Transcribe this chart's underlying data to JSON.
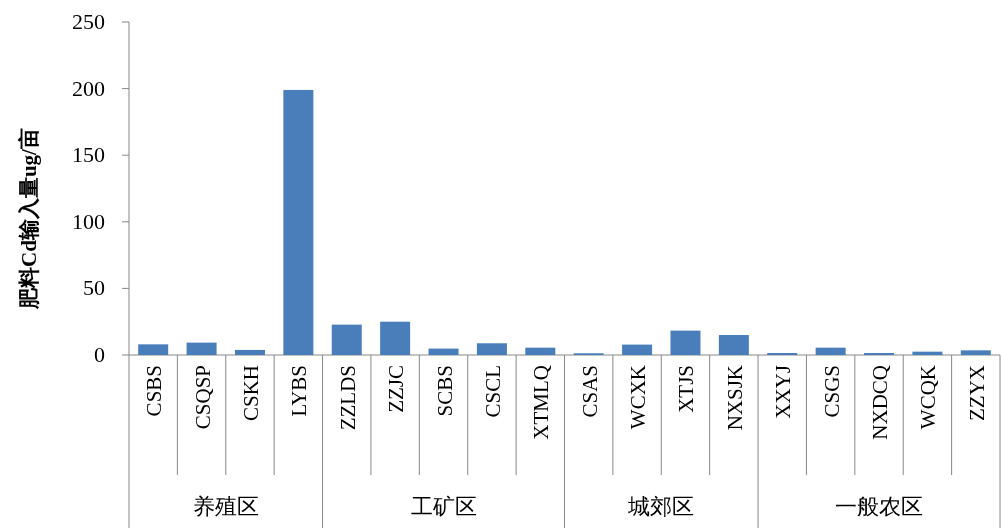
{
  "chart_data": {
    "type": "bar",
    "ylabel": "肥料Cd输入量ug/亩",
    "categories": [
      "CSBS",
      "CSQSP",
      "CSKH",
      "LYBS",
      "ZZLDS",
      "ZZJC",
      "SCBS",
      "CSCL",
      "XTMLQ",
      "CSAS",
      "WCXK",
      "XTJS",
      "NXSJK",
      "XXYJ",
      "CSGS",
      "NXDCQ",
      "WCQK",
      "ZZYX"
    ],
    "values": [
      8,
      9.3,
      3.8,
      199,
      22.8,
      25,
      4.8,
      8.8,
      5.5,
      1.3,
      7.8,
      18.3,
      15,
      1.5,
      5.5,
      1.5,
      2.5,
      3.5
    ],
    "color": "#4a7ebb",
    "ylim": [
      0,
      250
    ],
    "yticks": [
      0,
      50,
      100,
      150,
      200,
      250
    ],
    "annotations": [
      "养殖区",
      "工矿区",
      "城郊区",
      "一般农区"
    ]
  }
}
